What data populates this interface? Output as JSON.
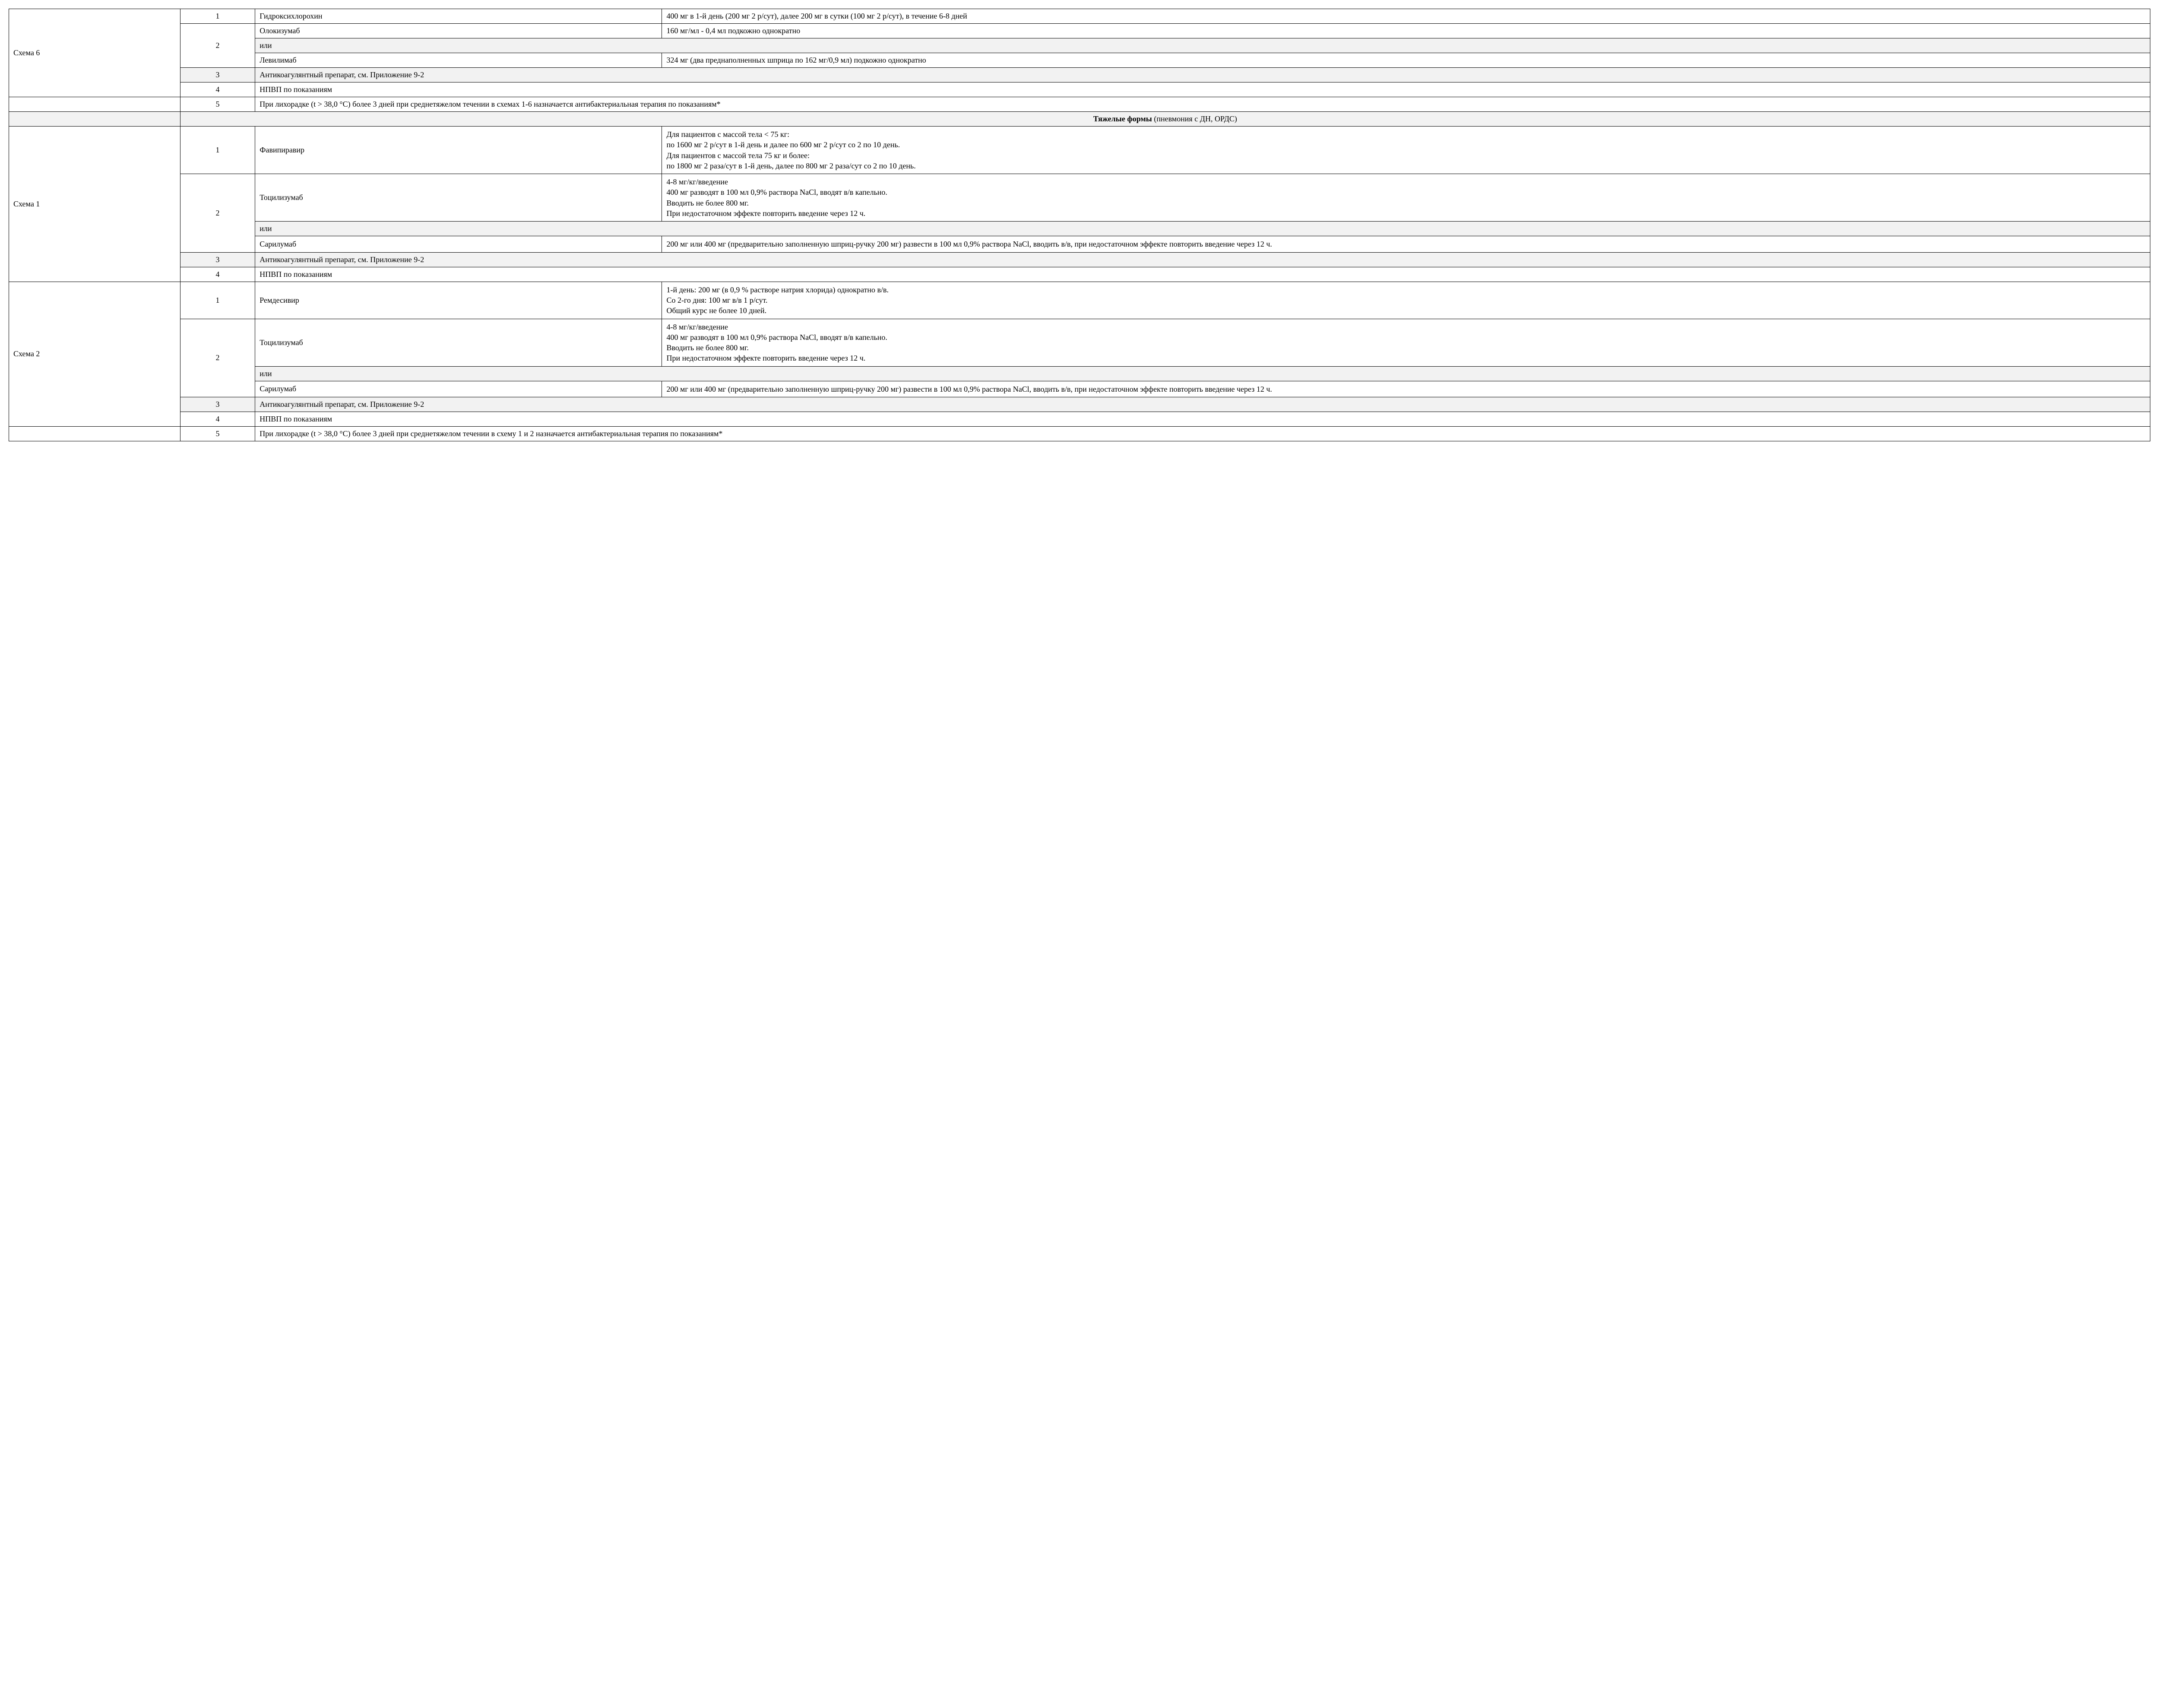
{
  "colors": {
    "border": "#000000",
    "shade_bg": "#f2f2f2",
    "page_bg": "#ffffff",
    "text": "#000000"
  },
  "typography": {
    "font_family": "Times New Roman",
    "base_fontsize_pt": 13
  },
  "layout": {
    "column_widths_pct": {
      "scheme": 8,
      "num": 3.5,
      "drug": 19,
      "dose": 69.5
    }
  },
  "labels": {
    "or": "или",
    "anticoag": "Антикоагулянтный препарат, см. Приложение 9-2",
    "nsaid": "НПВП по показаниям"
  },
  "scheme6": {
    "name": "Схема 6",
    "r1": {
      "num": "1",
      "drug": "Гидроксихлорохин",
      "dose": "400 мг в 1-й день (200 мг 2 р/сут), далее 200 мг в сутки (100 мг 2 р/сут), в течение 6-8 дней"
    },
    "r2": {
      "num": "2",
      "drug_a": "Олокизумаб",
      "dose_a": "160 мг/мл - 0,4 мл подкожно однократно",
      "drug_b": "Левилимаб",
      "dose_b": "324 мг (два преднаполненных шприца по 162 мг/0,9 мл) подкожно однократно"
    },
    "r3": {
      "num": "3"
    },
    "r4": {
      "num": "4"
    },
    "r5": {
      "num": "5",
      "text": "При лихорадке (t > 38,0 °C) более 3 дней при среднетяжелом течении в схемах 1-6 назначается антибактериальная терапия по показаниям*"
    }
  },
  "section_severe": {
    "title_bold": "Тяжелые формы",
    "title_rest": " (пневмония с ДН, ОРДС)"
  },
  "severe_s1": {
    "name": "Схема 1",
    "r1": {
      "num": "1",
      "drug": "Фавипиравир",
      "dose": "Для пациентов с массой тела < 75 кг:\nпо 1600 мг 2 р/сут в 1-й день и далее по 600 мг 2 р/сут  со 2 по 10 день.\nДля пациентов с массой тела 75 кг и более:\nпо 1800 мг 2 раза/сут в 1-й день, далее по 800 мг 2 раза/сут со 2 по 10 день."
    },
    "r2": {
      "num": "2",
      "drug_a": "Тоцилизумаб",
      "dose_a": "4-8 мг/кг/введение\n400 мг разводят в 100 мл 0,9% раствора NaCl, вводят в/в капельно.\nВводить не более 800 мг.\nПри недостаточном эффекте повторить введение через 12 ч.",
      "drug_b": "Сарилумаб",
      "dose_b": "200 мг или 400 мг (предварительно заполненную шприц-ручку 200 мг) развести в 100 мл 0,9% раствора NaCl, вводить в/в, при недостаточном эффекте повторить введение через 12 ч."
    },
    "r3": {
      "num": "3"
    },
    "r4": {
      "num": "4"
    }
  },
  "severe_s2": {
    "name": "Схема 2",
    "r1": {
      "num": "1",
      "drug": "Ремдесивир",
      "dose": "1-й день: 200 мг (в 0,9 % растворе натрия хлорида) однократно в/в.\nСо 2-го дня: 100 мг в/в 1 р/сут.\nОбщий курс не более 10 дней."
    },
    "r2": {
      "num": "2",
      "drug_a": "Тоцилизумаб",
      "dose_a": "4-8 мг/кг/введение\n400 мг разводят в 100 мл 0,9% раствора NaCl, вводят в/в капельно.\nВводить не более 800 мг.\nПри недостаточном эффекте повторить введение через 12 ч.",
      "drug_b": "Сарилумаб",
      "dose_b": "200 мг или 400 мг (предварительно заполненную шприц-ручку 200 мг) развести в 100 мл 0,9% раствора NaCl, вводить в/в, при недостаточном эффекте повторить введение через 12 ч."
    },
    "r3": {
      "num": "3"
    },
    "r4": {
      "num": "4"
    },
    "r5": {
      "num": "5",
      "text": "При лихорадке (t > 38,0 °C) более 3 дней при среднетяжелом течении в схему 1 и 2 назначается антибактериальная терапия по показаниям*"
    }
  }
}
